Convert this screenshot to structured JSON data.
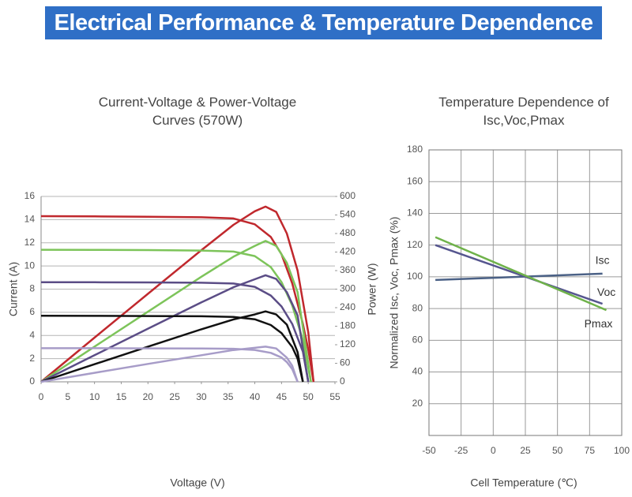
{
  "header": {
    "title": "Electrical Performance & Temperature Dependence"
  },
  "chart_data": [
    {
      "type": "line",
      "title": "Current-Voltage & Power-Voltage Curves (570W)",
      "xlabel": "Voltage (V)",
      "ylabel": "Current (A)",
      "y2label": "Power (W)",
      "xlim": [
        0,
        55
      ],
      "xticks": [
        0,
        5,
        10,
        15,
        20,
        25,
        30,
        35,
        40,
        45,
        50,
        55
      ],
      "ylim": [
        0,
        16
      ],
      "yticks": [
        0,
        2,
        4,
        6,
        8,
        10,
        12,
        14,
        16
      ],
      "y2lim": [
        0,
        600
      ],
      "y2ticks": [
        0,
        60,
        120,
        180,
        240,
        300,
        360,
        420,
        480,
        540,
        600
      ],
      "grid": "y",
      "series": [
        {
          "color": "#c0282d",
          "x": [
            0,
            10,
            20,
            30,
            36,
            40,
            43,
            45,
            47,
            49,
            50,
            51
          ],
          "values": [
            14.3,
            14.28,
            14.25,
            14.2,
            14.1,
            13.6,
            12.5,
            11,
            8.5,
            5,
            2.8,
            0
          ]
        },
        {
          "color": "#c0282d",
          "axis": "y2",
          "x": [
            0,
            10,
            20,
            30,
            36,
            40,
            42,
            44,
            46,
            48,
            50,
            51
          ],
          "values": [
            0,
            143,
            285,
            426,
            508,
            552,
            567,
            550,
            480,
            360,
            160,
            0
          ]
        },
        {
          "color": "#7dc45a",
          "x": [
            0,
            10,
            20,
            30,
            36,
            40,
            43,
            45,
            47,
            49,
            50.5
          ],
          "values": [
            11.4,
            11.39,
            11.37,
            11.33,
            11.24,
            10.85,
            9.9,
            8.6,
            6.6,
            3.6,
            0
          ]
        },
        {
          "color": "#7dc45a",
          "axis": "y2",
          "x": [
            0,
            10,
            20,
            30,
            36,
            40,
            42,
            44,
            46,
            48,
            50.5
          ],
          "values": [
            0,
            114,
            227,
            340,
            405,
            440,
            456,
            440,
            385,
            290,
            0
          ]
        },
        {
          "color": "#5b4d86",
          "x": [
            0,
            10,
            20,
            30,
            36,
            40,
            43,
            45,
            47,
            49,
            50
          ],
          "values": [
            8.6,
            8.59,
            8.58,
            8.55,
            8.48,
            8.2,
            7.45,
            6.5,
            5,
            2.6,
            0
          ]
        },
        {
          "color": "#5b4d86",
          "axis": "y2",
          "x": [
            0,
            10,
            20,
            30,
            36,
            40,
            42,
            44,
            46,
            48,
            50
          ],
          "values": [
            0,
            86,
            172,
            257,
            306,
            332,
            345,
            333,
            290,
            215,
            0
          ]
        },
        {
          "color": "#111111",
          "x": [
            0,
            10,
            20,
            30,
            36,
            40,
            43,
            45,
            47,
            48,
            49
          ],
          "values": [
            5.7,
            5.69,
            5.68,
            5.66,
            5.6,
            5.4,
            4.9,
            4.2,
            3,
            2,
            0
          ]
        },
        {
          "color": "#111111",
          "axis": "y2",
          "x": [
            0,
            10,
            20,
            30,
            36,
            40,
            42,
            44,
            46,
            48,
            49
          ],
          "values": [
            0,
            57,
            114,
            170,
            202,
            218,
            228,
            218,
            185,
            96,
            0
          ]
        },
        {
          "color": "#a79cc8",
          "x": [
            0,
            10,
            20,
            30,
            36,
            40,
            43,
            45,
            46,
            47,
            48
          ],
          "values": [
            2.9,
            2.9,
            2.89,
            2.88,
            2.85,
            2.75,
            2.5,
            2.1,
            1.7,
            1.1,
            0
          ]
        },
        {
          "color": "#a79cc8",
          "axis": "y2",
          "x": [
            0,
            10,
            20,
            30,
            36,
            40,
            42,
            44,
            46,
            47,
            48
          ],
          "values": [
            0,
            29,
            58,
            86,
            103,
            110,
            114,
            108,
            78,
            52,
            0
          ]
        }
      ]
    },
    {
      "type": "line",
      "title": "Temperature Dependence of Isc,Voc,Pmax",
      "xlabel": "Cell Temperature (℃)",
      "ylabel": "Normalized Isc, Voc, Pmax (%)",
      "xlim": [
        -50,
        100
      ],
      "xticks": [
        -50,
        -25,
        0,
        25,
        50,
        75,
        100
      ],
      "ylim": [
        0,
        180
      ],
      "yticks": [
        20,
        40,
        60,
        80,
        100,
        120,
        140,
        160,
        180
      ],
      "grid": "both",
      "series": [
        {
          "name": "Isc",
          "color": "#4b6186",
          "x": [
            -45,
            85
          ],
          "values": [
            98,
            102
          ]
        },
        {
          "name": "Voc",
          "color": "#56568f",
          "x": [
            -45,
            85
          ],
          "values": [
            120,
            83
          ]
        },
        {
          "name": "Pmax",
          "color": "#6fb24a",
          "x": [
            -45,
            88
          ],
          "values": [
            125,
            79
          ]
        }
      ]
    }
  ]
}
